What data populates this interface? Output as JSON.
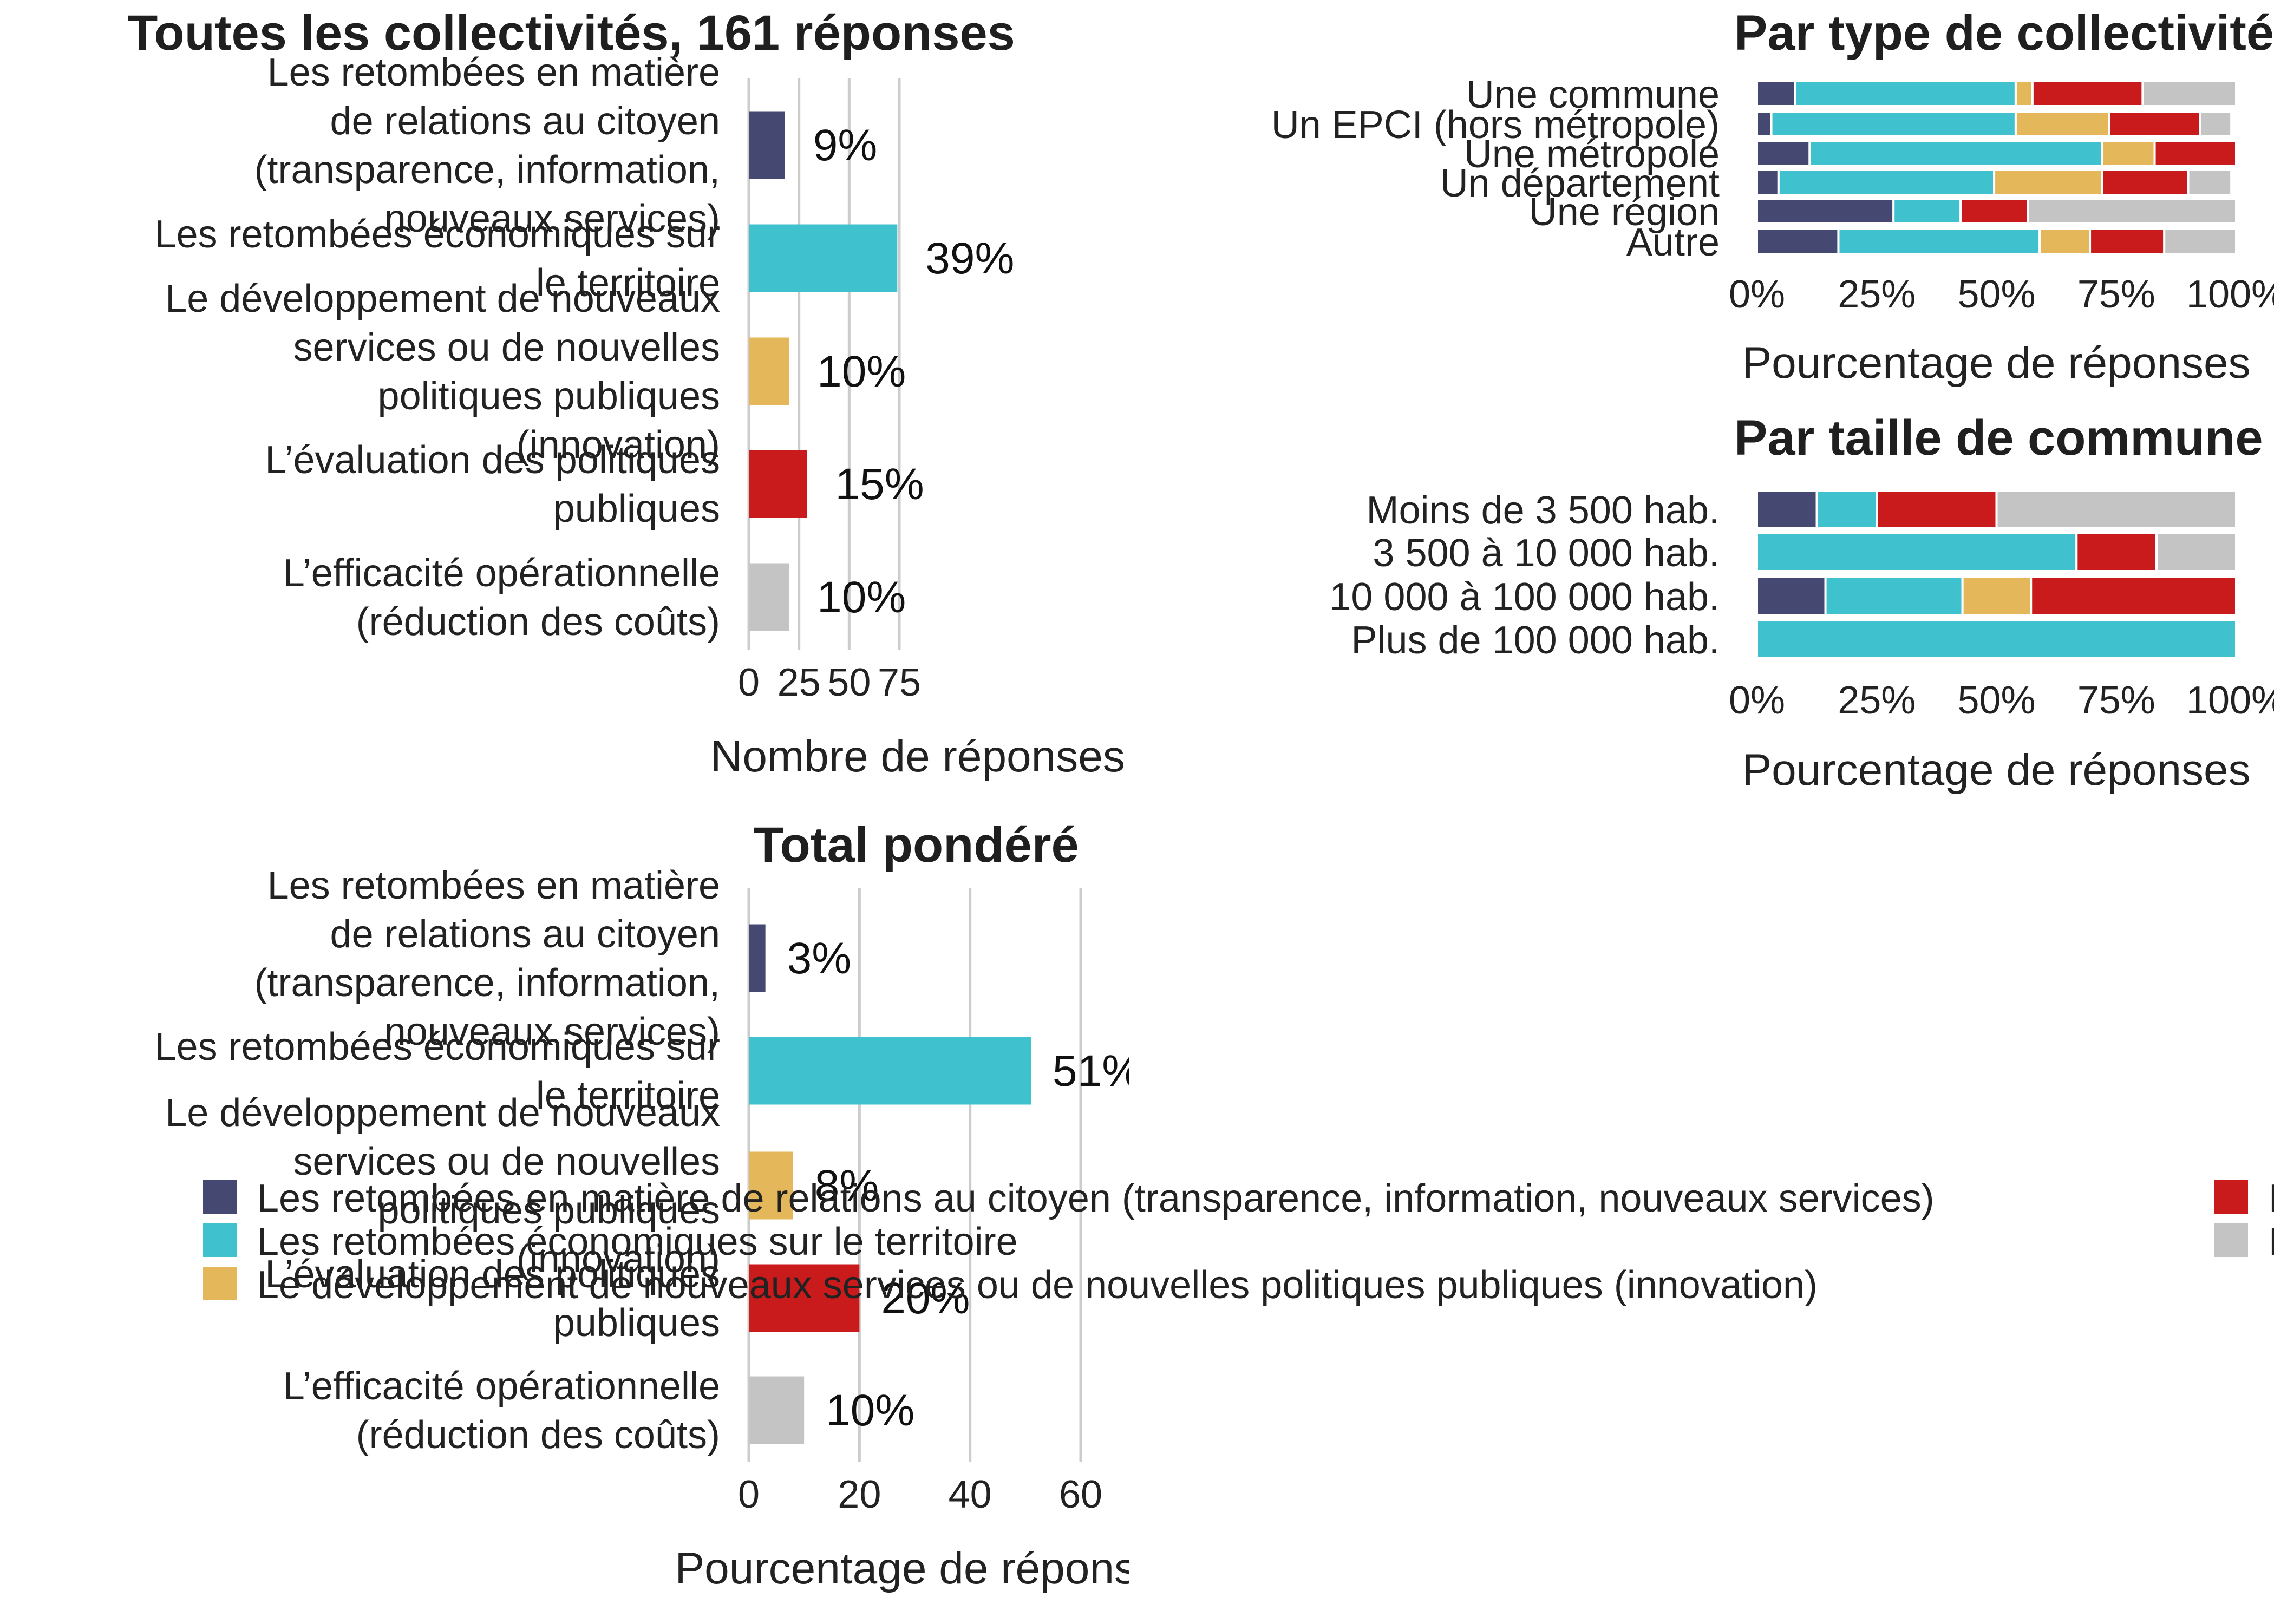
{
  "colors": {
    "relations_citoyen": "#454870",
    "retombees_eco": "#3fc1ce",
    "innovation": "#e4b85a",
    "evaluation": "#c91a1c",
    "efficacite": "#c4c4c4"
  },
  "chart_data": [
    {
      "id": "toutes",
      "type": "bar",
      "orientation": "horizontal",
      "title": "Toutes les collectivités, 161 réponses",
      "xlabel": "Nombre de réponses",
      "ylabel": "",
      "xlim": [
        0,
        92
      ],
      "xticks": [
        "0",
        "25",
        "50",
        "75"
      ],
      "grid": true,
      "categories": [
        "Les retombées en matière de relations au citoyen (transparence, information, nouveaux services)",
        "Les retombées économiques sur le territoire",
        "Le développement de nouveaux services ou de nouvelles politiques publiques (innovation)",
        "L’évaluation des politiques publiques",
        "L’efficacité opérationnelle (réduction des coûts)"
      ],
      "category_lines": [
        [
          "Les retombées en matière",
          "de relations au citoyen",
          "(transparence, information,",
          "nouveaux services)"
        ],
        [
          "Les retombées économiques sur",
          "le territoire"
        ],
        [
          "Le développement de nouveaux",
          "services ou de nouvelles",
          "politiques publiques",
          "(innovation)"
        ],
        [
          "L’évaluation des politiques",
          "publiques"
        ],
        [
          "L’efficacité opérationnelle",
          "(réduction des coûts)"
        ]
      ],
      "values": [
        18,
        74,
        20,
        29,
        20
      ],
      "data_labels": [
        "9%",
        "39%",
        "10%",
        "15%",
        "10%"
      ]
    },
    {
      "id": "type",
      "type": "bar",
      "orientation": "horizontal",
      "stacked": "percent",
      "title": "Par type de collectivité",
      "xlabel": "Pourcentage de réponses",
      "xlim": [
        0,
        1
      ],
      "xticks": [
        "0%",
        "25%",
        "50%",
        "75%",
        "100%"
      ],
      "categories": [
        "Une commune",
        "Un EPCI (hors métropole)",
        "Une métropole",
        "Un département",
        "Une région",
        "Autre"
      ],
      "series": [
        {
          "key": "relations_citoyen",
          "values": [
            0.08,
            0.03,
            0.11,
            0.045,
            0.285,
            0.17
          ]
        },
        {
          "key": "retombees_eco",
          "values": [
            0.46,
            0.51,
            0.61,
            0.45,
            0.14,
            0.42
          ]
        },
        {
          "key": "innovation",
          "values": [
            0.035,
            0.195,
            0.11,
            0.225,
            0.0,
            0.105
          ]
        },
        {
          "key": "evaluation",
          "values": [
            0.23,
            0.19,
            0.17,
            0.18,
            0.14,
            0.155
          ]
        },
        {
          "key": "efficacite",
          "values": [
            0.195,
            0.065,
            0.0,
            0.09,
            0.435,
            0.15
          ]
        }
      ]
    },
    {
      "id": "taille",
      "type": "bar",
      "orientation": "horizontal",
      "stacked": "percent",
      "title": "Par taille de commune",
      "xlabel": "Pourcentage de réponses",
      "xlim": [
        0,
        1
      ],
      "xticks": [
        "0%",
        "25%",
        "50%",
        "75%",
        "100%"
      ],
      "categories": [
        "Moins de 3 500 hab.",
        "3 500 à 10 000 hab.",
        "10 000 à 100 000 hab.",
        "Plus de 100 000 hab."
      ],
      "series": [
        {
          "key": "relations_citoyen",
          "values": [
            0.125,
            0.0,
            0.143,
            0.0
          ]
        },
        {
          "key": "retombees_eco",
          "values": [
            0.125,
            0.667,
            0.286,
            1.0
          ]
        },
        {
          "key": "innovation",
          "values": [
            0.0,
            0.0,
            0.143,
            0.0
          ]
        },
        {
          "key": "evaluation",
          "values": [
            0.25,
            0.167,
            0.428,
            0.0
          ]
        },
        {
          "key": "efficacite",
          "values": [
            0.5,
            0.166,
            0.0,
            0.0
          ]
        }
      ]
    },
    {
      "id": "pondere",
      "type": "bar",
      "orientation": "horizontal",
      "title": "Total pondéré",
      "xlabel": "Pourcentage de réponses",
      "xlim": [
        0,
        68
      ],
      "xticks": [
        "0",
        "20",
        "40",
        "60"
      ],
      "grid": true,
      "category_lines": [
        [
          "Les retombées en matière",
          "de relations au citoyen",
          "(transparence, information,",
          "nouveaux services)"
        ],
        [
          "Les retombées économiques sur",
          "le territoire"
        ],
        [
          "Le développement de nouveaux",
          "services ou de nouvelles",
          "politiques publiques",
          "(innovation)"
        ],
        [
          "L’évaluation des politiques",
          "publiques"
        ],
        [
          "L’efficacité opérationnelle",
          "(réduction des coûts)"
        ]
      ],
      "values": [
        3,
        51,
        8,
        20,
        10
      ],
      "data_labels": [
        "3%",
        "51%",
        "8%",
        "20%",
        "10%"
      ]
    }
  ],
  "legend": [
    {
      "key": "relations_citoyen",
      "label": "Les retombées en matière de relations au citoyen (transparence, information, nouveaux services)"
    },
    {
      "key": "retombees_eco",
      "label": "Les retombées économiques sur le territoire"
    },
    {
      "key": "innovation",
      "label": "Le développement de nouveaux services ou de nouvelles politiques publiques (innovation)"
    },
    {
      "key": "evaluation",
      "label": "L’évaluation des politiques publiques"
    },
    {
      "key": "efficacite",
      "label": "L’efficacité opérationnelle (réduction des coûts)"
    }
  ]
}
